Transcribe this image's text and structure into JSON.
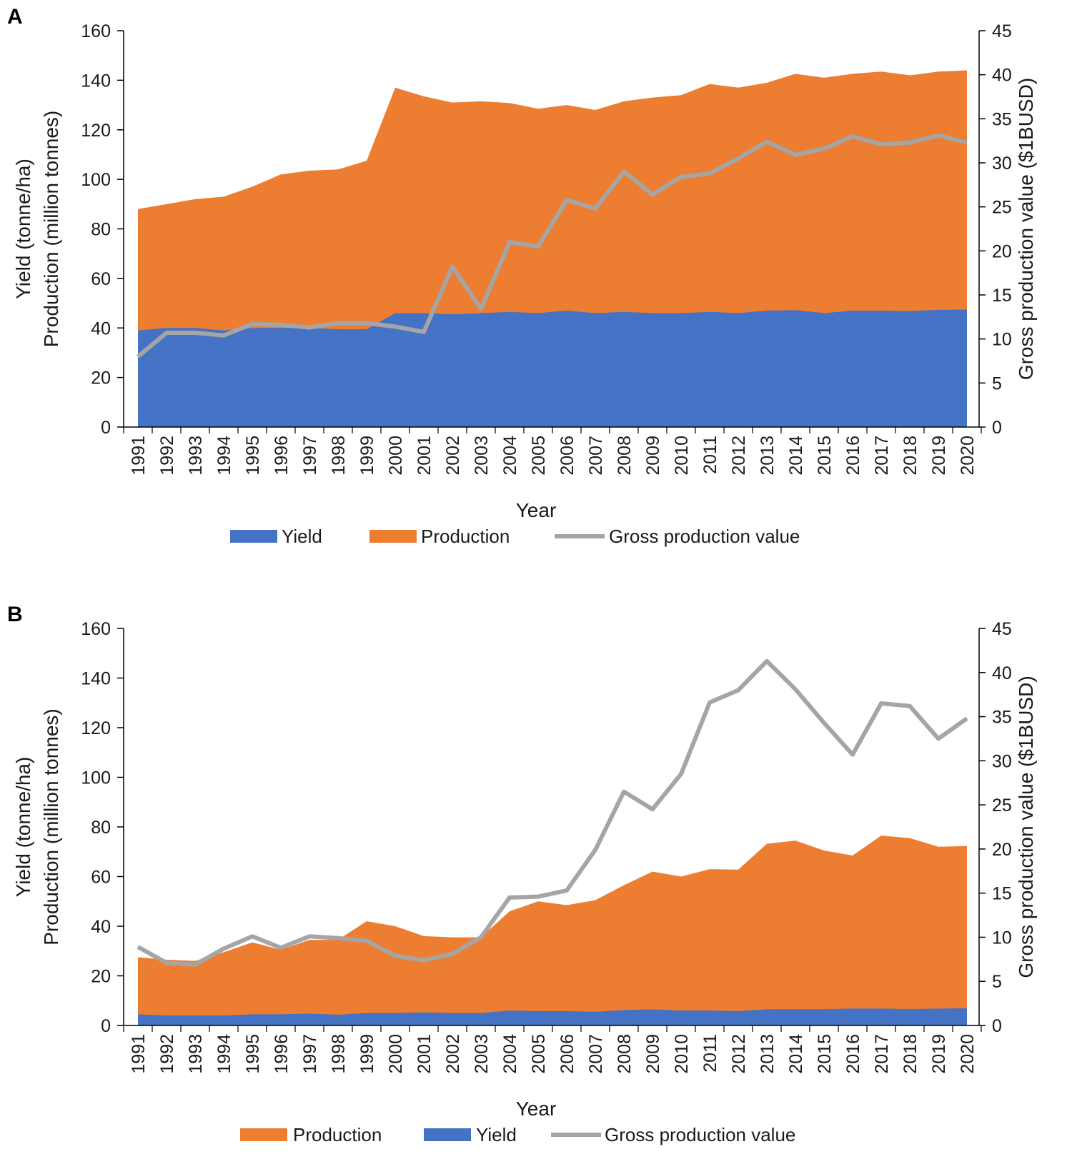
{
  "colors": {
    "yield": "#4472C4",
    "production": "#ED7D31",
    "gross": "#A5A5A5",
    "axis": "#000000",
    "text": "#1a1a1a"
  },
  "chart_data": [
    {
      "panel": "A",
      "type": "area",
      "x": [
        1991,
        1992,
        1993,
        1994,
        1995,
        1996,
        1997,
        1998,
        1999,
        2000,
        2001,
        2002,
        2003,
        2004,
        2005,
        2006,
        2007,
        2008,
        2009,
        2010,
        2011,
        2012,
        2013,
        2014,
        2015,
        2016,
        2017,
        2018,
        2019,
        2020
      ],
      "series": [
        {
          "name": "Yield",
          "kind": "area",
          "axis": "left",
          "values": [
            39,
            40,
            40,
            39,
            40,
            40,
            40,
            39.5,
            39.5,
            46,
            46,
            45.5,
            46,
            46.5,
            46,
            47,
            46,
            46.5,
            46,
            46,
            46.5,
            46,
            47,
            47.2,
            46,
            47,
            47,
            46.8,
            47.3,
            47.4
          ]
        },
        {
          "name": "Production",
          "kind": "area",
          "axis": "left",
          "values": [
            88,
            90,
            92,
            93,
            97,
            102,
            103.5,
            104,
            107.5,
            137,
            133.5,
            131,
            131.5,
            130.8,
            128.5,
            130,
            128,
            131.5,
            133,
            134,
            138.5,
            137,
            139,
            142.6,
            141,
            142.6,
            143.5,
            142,
            143.5,
            144
          ]
        },
        {
          "name": "Gross production value",
          "kind": "line",
          "axis": "right",
          "values": [
            8,
            10.7,
            10.7,
            10.4,
            11.7,
            11.6,
            11.3,
            11.8,
            11.8,
            11.4,
            10.8,
            18.2,
            13.4,
            21,
            20.5,
            25.8,
            24.8,
            29,
            26.4,
            28.4,
            28.8,
            30.5,
            32.4,
            30.9,
            31.6,
            33,
            32.1,
            32.3,
            33.1,
            32.3
          ]
        }
      ],
      "xlabel": "Year",
      "ylabel": [
        "Yield (tonne/ha)",
        "Production (million tonnes)"
      ],
      "y2label": "Gross production value ($1BUSD)",
      "ylim": [
        0,
        160
      ],
      "yticks": [
        "0",
        "20",
        "40",
        "60",
        "80",
        "100",
        "120",
        "140",
        "160"
      ],
      "y2lim": [
        0,
        45
      ],
      "y2ticks": [
        "0",
        "5",
        "10",
        "15",
        "20",
        "25",
        "30",
        "35",
        "40",
        "45"
      ],
      "legend": [
        "Yield",
        "Production",
        "Gross production value"
      ],
      "legend_position": "bottom",
      "grid": false
    },
    {
      "panel": "B",
      "type": "area",
      "x": [
        1991,
        1992,
        1993,
        1994,
        1995,
        1996,
        1997,
        1998,
        1999,
        2000,
        2001,
        2002,
        2003,
        2004,
        2005,
        2006,
        2007,
        2008,
        2009,
        2010,
        2011,
        2012,
        2013,
        2014,
        2015,
        2016,
        2017,
        2018,
        2019,
        2020
      ],
      "series": [
        {
          "name": "Yield",
          "kind": "area",
          "axis": "left",
          "values": [
            4.5,
            4,
            4,
            4,
            4.5,
            4.5,
            4.8,
            4.3,
            5,
            5,
            5.3,
            5,
            5,
            6,
            5.8,
            5.8,
            5.5,
            6.2,
            6.5,
            6,
            6,
            5.8,
            6.5,
            6.6,
            6.6,
            6.8,
            6.8,
            6.6,
            6.8,
            6.9
          ]
        },
        {
          "name": "Production",
          "kind": "area",
          "axis": "left",
          "values": [
            27.5,
            26.5,
            26,
            29.5,
            33.5,
            30.5,
            34.5,
            34.5,
            42,
            40,
            36,
            35.5,
            35.5,
            46,
            50,
            48.5,
            50.5,
            56.5,
            62,
            60,
            63,
            62.8,
            73.2,
            74.5,
            70.5,
            68.5,
            76.5,
            75.5,
            72,
            72.3
          ]
        },
        {
          "name": "Gross production value",
          "kind": "line",
          "axis": "right",
          "values": [
            8.9,
            7.1,
            6.9,
            8.7,
            10.1,
            8.8,
            10.1,
            9.9,
            9.6,
            7.9,
            7.4,
            8.1,
            10,
            14.5,
            14.6,
            15.3,
            19.9,
            26.5,
            24.5,
            28.5,
            36.6,
            38,
            41.3,
            38.1,
            34.3,
            30.7,
            36.5,
            36.2,
            32.5,
            34.8
          ]
        }
      ],
      "xlabel": "Year",
      "ylabel": [
        "Yield (tonne/ha)",
        "Production (million tonnes)"
      ],
      "y2label": "Gross production value ($1BUSD)",
      "ylim": [
        0,
        160
      ],
      "yticks": [
        "0",
        "20",
        "40",
        "60",
        "80",
        "100",
        "120",
        "140",
        "160"
      ],
      "y2lim": [
        0,
        45
      ],
      "y2ticks": [
        "0",
        "5",
        "10",
        "15",
        "20",
        "25",
        "30",
        "35",
        "40",
        "45"
      ],
      "legend": [
        "Production",
        "Yield",
        "Gross production value"
      ],
      "legend_position": "bottom",
      "grid": false
    }
  ]
}
